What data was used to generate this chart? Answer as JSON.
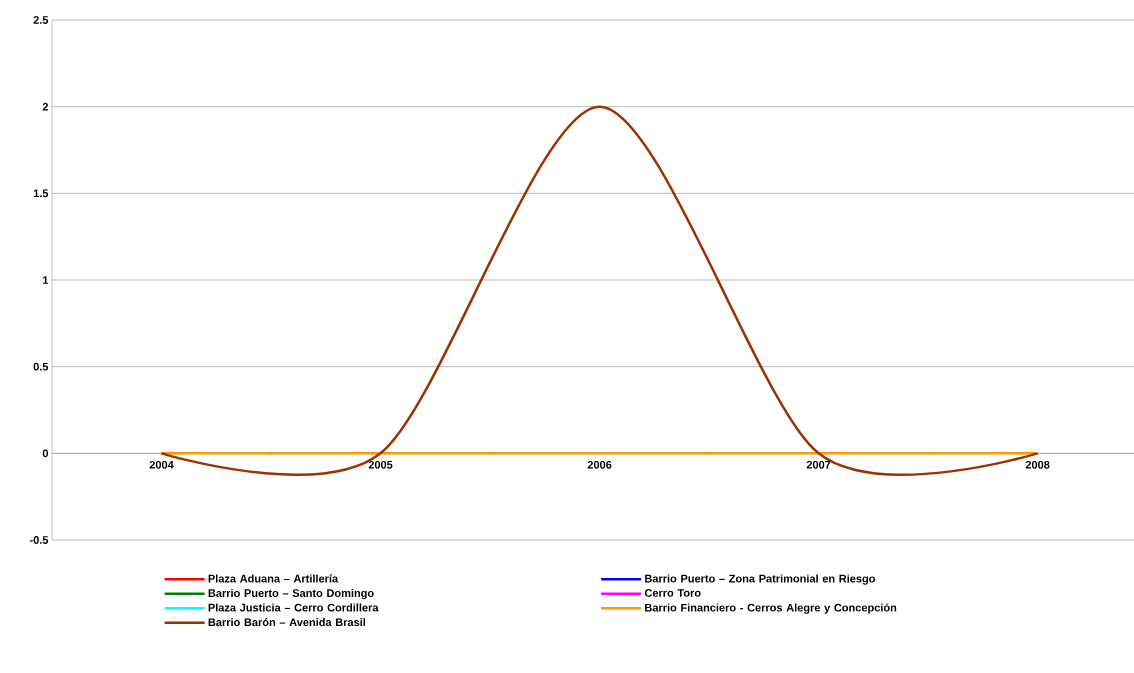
{
  "chart_data": {
    "type": "line",
    "categories": [
      "2004",
      "2005",
      "2006",
      "2007",
      "2008"
    ],
    "series": [
      {
        "name": "Plaza Aduana – Artillería",
        "color": "#ff0000",
        "values": [
          null,
          null,
          null,
          null,
          null
        ]
      },
      {
        "name": "Barrio Puerto – Zona Patrimonial en Riesgo",
        "color": "#0000ff",
        "values": [
          null,
          null,
          null,
          null,
          null
        ]
      },
      {
        "name": "Barrio Puerto – Santo Domingo",
        "color": "#008000",
        "values": [
          null,
          null,
          null,
          null,
          null
        ]
      },
      {
        "name": "Cerro Toro",
        "color": "#ff00ff",
        "values": [
          null,
          null,
          null,
          null,
          null
        ]
      },
      {
        "name": "Plaza Justicia – Cerro Cordillera",
        "color": "#00ffff",
        "values": [
          null,
          null,
          null,
          null,
          null
        ]
      },
      {
        "name": "Barrio Financiero - Cerros Alegre y Concepción",
        "color": "#ff9900",
        "values": [
          0,
          0,
          0,
          0,
          0
        ]
      },
      {
        "name": "Barrio Barón – Avenida Brasil",
        "color": "#993300",
        "values": [
          0,
          0,
          2,
          0,
          0
        ]
      }
    ],
    "ylim": [
      -0.5,
      2.5
    ],
    "yticks": [
      -0.5,
      0,
      0.5,
      1,
      1.5,
      2,
      2.5
    ],
    "grid": "y",
    "legend": "bottom",
    "marker": "none"
  }
}
